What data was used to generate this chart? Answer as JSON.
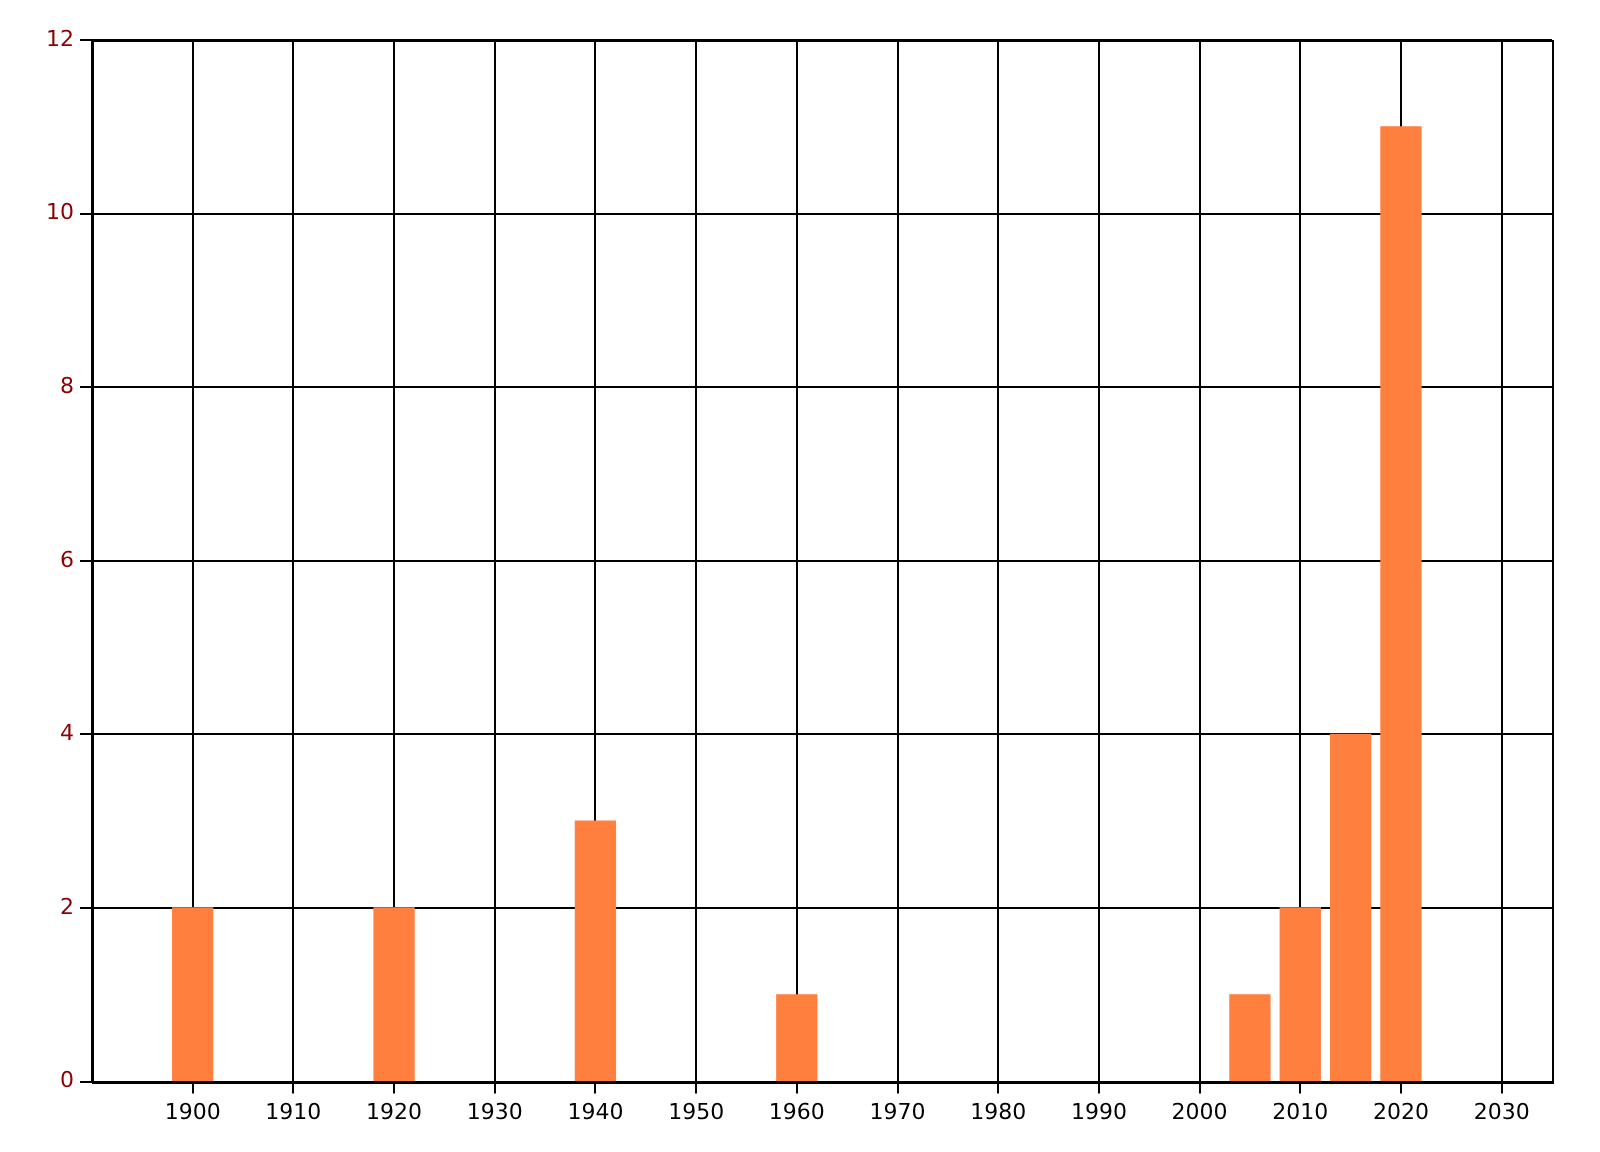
{
  "chart_data": {
    "type": "bar",
    "x": [
      1900,
      1920,
      1940,
      1960,
      2005,
      2010,
      2015,
      2020
    ],
    "values": [
      2,
      2,
      3,
      1,
      1,
      2,
      4,
      11
    ],
    "color": "#ff7f3f",
    "xlim": [
      1890,
      2035
    ],
    "xticks": [
      1900,
      1910,
      1920,
      1930,
      1940,
      1950,
      1960,
      1970,
      1980,
      1990,
      2000,
      2010,
      2020,
      2030
    ],
    "ylim": [
      0,
      12
    ],
    "yticks": [
      0,
      2,
      4,
      6,
      8,
      10,
      12
    ],
    "grid": true,
    "legend": false
  }
}
